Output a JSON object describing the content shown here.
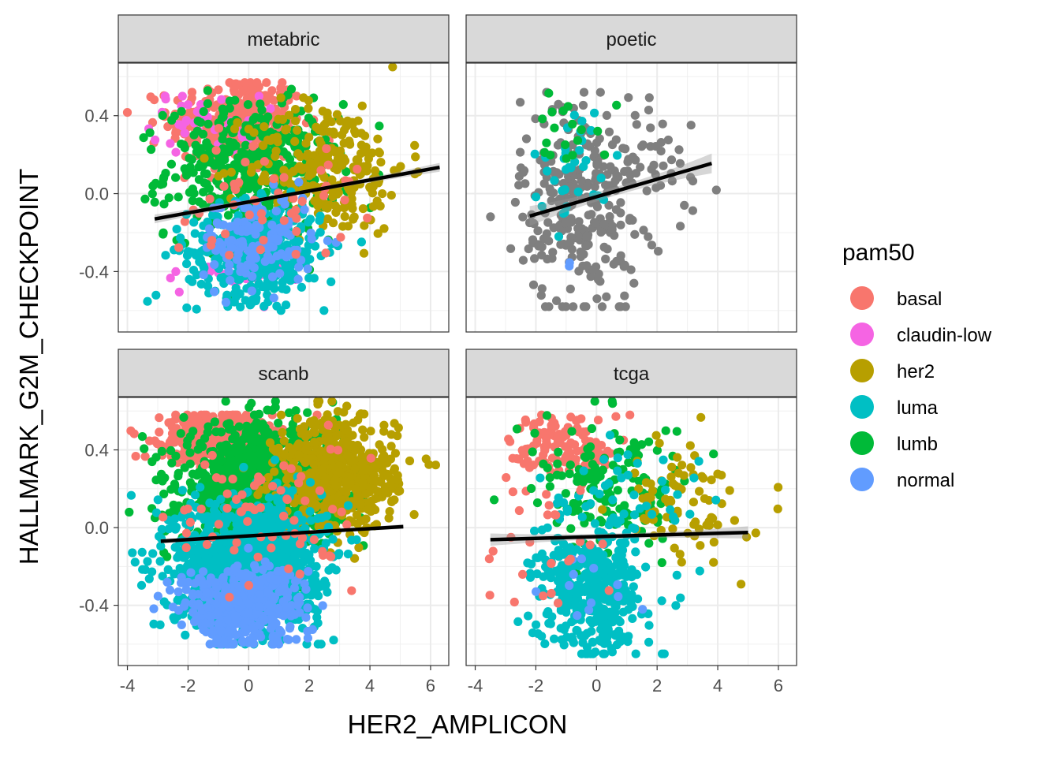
{
  "chart_data": {
    "type": "scatter",
    "xlabel": "HER2_AMPLICON",
    "ylabel": "HALLMARK_G2M_CHECKPOINT",
    "xlim": [
      -4.3,
      6.6
    ],
    "ylim": [
      -0.71,
      0.67
    ],
    "x_ticks": [
      -4,
      -2,
      0,
      2,
      4,
      6
    ],
    "y_ticks": [
      -0.4,
      0.0,
      0.4
    ],
    "x_tick_labels": [
      "-4",
      "-2",
      "0",
      "2",
      "4",
      "6"
    ],
    "y_tick_labels": [
      "-0.4",
      "0.0",
      "0.4"
    ],
    "grid": true,
    "legend": {
      "title": "pam50",
      "placement": "right",
      "entries": [
        {
          "label": "basal",
          "color": "#F8766D"
        },
        {
          "label": "claudin-low",
          "color": "#F564E3"
        },
        {
          "label": "her2",
          "color": "#B79F00"
        },
        {
          "label": "luma",
          "color": "#00BFC4"
        },
        {
          "label": "lumb",
          "color": "#00BA38"
        },
        {
          "label": "normal",
          "color": "#619CFF"
        }
      ]
    },
    "na_color": "#7F7F7F",
    "panels": [
      {
        "name": "metabric",
        "fit": {
          "x": [
            -3.1,
            6.3
          ],
          "y": [
            -0.13,
            0.135
          ],
          "se": 0.018
        },
        "clusters": [
          {
            "cls": "basal",
            "n": 320,
            "cx": -0.4,
            "sx": 1.1,
            "cy": 0.36,
            "sy": 0.12,
            "ymax": 0.57
          },
          {
            "cls": "claudin-low",
            "n": 40,
            "cx": -1.4,
            "sx": 0.9,
            "cy": 0.37,
            "sy": 0.08,
            "ymax": 0.5
          },
          {
            "cls": "claudin-low",
            "n": 40,
            "cx": -0.5,
            "sx": 1.1,
            "cy": -0.38,
            "sy": 0.07
          },
          {
            "cls": "lumb",
            "n": 430,
            "cx": 0.1,
            "sx": 1.4,
            "cy": 0.12,
            "sy": 0.17
          },
          {
            "cls": "her2",
            "n": 260,
            "cx": 2.6,
            "sx": 1.3,
            "cy": 0.14,
            "sy": 0.17
          },
          {
            "cls": "luma",
            "n": 420,
            "cx": 0.2,
            "sx": 1.1,
            "cy": -0.3,
            "sy": 0.12,
            "ymin": -0.6
          },
          {
            "cls": "normal",
            "n": 140,
            "cx": 0.3,
            "sx": 0.9,
            "cy": -0.24,
            "sy": 0.12
          },
          {
            "cls": "basal",
            "n": 50,
            "cx": 0.5,
            "sx": 1.6,
            "cy": -0.02,
            "sy": 0.15
          }
        ]
      },
      {
        "name": "poetic",
        "fit": {
          "x": [
            -2.2,
            3.8
          ],
          "y": [
            -0.115,
            0.155
          ],
          "se": 0.04
        },
        "clusters": [
          {
            "cls": "NA",
            "n": 290,
            "cx": -0.5,
            "sx": 1.0,
            "cy": -0.05,
            "sy": 0.28,
            "ymin": -0.58,
            "ymax": 0.52
          },
          {
            "cls": "luma",
            "n": 35,
            "cx": -0.7,
            "sx": 0.7,
            "cy": 0.15,
            "sy": 0.15
          },
          {
            "cls": "lumb",
            "n": 18,
            "cx": -0.8,
            "sx": 0.6,
            "cy": 0.35,
            "sy": 0.09,
            "ymax": 0.6
          },
          {
            "cls": "NA",
            "n": 30,
            "cx": 2.0,
            "sx": 1.0,
            "cy": 0.15,
            "sy": 0.2
          },
          {
            "cls": "normal",
            "n": 2,
            "cx": -1.0,
            "sx": 0.2,
            "cy": -0.38,
            "sy": 0.02
          }
        ]
      },
      {
        "name": "scanb",
        "fit": {
          "x": [
            -2.9,
            5.1
          ],
          "y": [
            -0.07,
            0.005
          ],
          "se": 0.01
        },
        "clusters": [
          {
            "cls": "basal",
            "n": 500,
            "cx": -1.0,
            "sx": 0.9,
            "cy": 0.47,
            "sy": 0.06,
            "ymax": 0.58
          },
          {
            "cls": "lumb",
            "n": 1000,
            "cx": 0.4,
            "sx": 1.3,
            "cy": 0.22,
            "sy": 0.15
          },
          {
            "cls": "her2",
            "n": 550,
            "cx": 2.9,
            "sx": 1.0,
            "cy": 0.27,
            "sy": 0.15
          },
          {
            "cls": "luma",
            "n": 1200,
            "cx": 0.0,
            "sx": 1.2,
            "cy": -0.18,
            "sy": 0.16,
            "ymin": -0.6
          },
          {
            "cls": "normal",
            "n": 500,
            "cx": -0.2,
            "sx": 1.0,
            "cy": -0.4,
            "sy": 0.1,
            "ymin": -0.6
          },
          {
            "cls": "basal",
            "n": 70,
            "cx": 0.5,
            "sx": 1.5,
            "cy": 0.05,
            "sy": 0.2
          }
        ]
      },
      {
        "name": "tcga",
        "fit": {
          "x": [
            -3.5,
            5.0
          ],
          "y": [
            -0.062,
            -0.025
          ],
          "se": 0.025
        },
        "clusters": [
          {
            "cls": "basal",
            "n": 130,
            "cx": -1.0,
            "sx": 0.9,
            "cy": 0.42,
            "sy": 0.09,
            "ymax": 0.58
          },
          {
            "cls": "lumb",
            "n": 150,
            "cx": 0.5,
            "sx": 1.3,
            "cy": 0.2,
            "sy": 0.17
          },
          {
            "cls": "her2",
            "n": 80,
            "cx": 2.8,
            "sx": 1.0,
            "cy": 0.12,
            "sy": 0.17
          },
          {
            "cls": "luma",
            "n": 380,
            "cx": -0.2,
            "sx": 0.9,
            "cy": -0.35,
            "sy": 0.15,
            "ymin": -0.65
          },
          {
            "cls": "luma",
            "n": 60,
            "cx": 0.8,
            "sx": 1.3,
            "cy": 0.1,
            "sy": 0.18
          },
          {
            "cls": "normal",
            "n": 12,
            "cx": -0.5,
            "sx": 1.0,
            "cy": -0.3,
            "sy": 0.15
          },
          {
            "cls": "basal",
            "n": 25,
            "cx": -1.5,
            "sx": 1.2,
            "cy": -0.1,
            "sy": 0.2
          }
        ]
      }
    ]
  }
}
